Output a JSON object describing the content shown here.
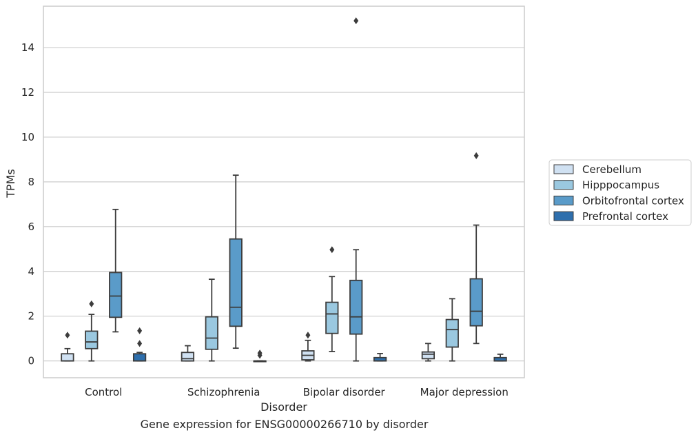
{
  "caption": "Gene expression for ENSG00000266710 by disorder",
  "chart_data": {
    "type": "box",
    "title": "",
    "xlabel": "Disorder",
    "ylabel": "TPMs",
    "ylim": [
      -0.75,
      15.85
    ],
    "yticks": [
      0,
      2,
      4,
      6,
      8,
      10,
      12,
      14
    ],
    "grid": "horizontal",
    "legend_position": "right",
    "categories": [
      "Control",
      "Schizophrenia",
      "Bipolar disorder",
      "Major depression"
    ],
    "series": [
      {
        "name": "Cerebellum",
        "color": "#d0e1f2",
        "boxes": [
          {
            "whisker_low": 0.0,
            "q1": 0.0,
            "median": 0.0,
            "q3": 0.32,
            "whisker_high": 0.55,
            "outliers": [
              1.15
            ]
          },
          {
            "whisker_low": 0.0,
            "q1": 0.0,
            "median": 0.1,
            "q3": 0.38,
            "whisker_high": 0.68,
            "outliers": []
          },
          {
            "whisker_low": 0.0,
            "q1": 0.05,
            "median": 0.25,
            "q3": 0.45,
            "whisker_high": 0.92,
            "outliers": [
              1.15
            ]
          },
          {
            "whisker_low": 0.0,
            "q1": 0.1,
            "median": 0.3,
            "q3": 0.4,
            "whisker_high": 0.78,
            "outliers": []
          }
        ]
      },
      {
        "name": "Hipppocampus",
        "color": "#9ac8e0",
        "boxes": [
          {
            "whisker_low": 0.0,
            "q1": 0.55,
            "median": 0.85,
            "q3": 1.33,
            "whisker_high": 2.08,
            "outliers": [
              2.55
            ]
          },
          {
            "whisker_low": 0.0,
            "q1": 0.52,
            "median": 1.02,
            "q3": 1.97,
            "whisker_high": 3.65,
            "outliers": []
          },
          {
            "whisker_low": 0.42,
            "q1": 1.23,
            "median": 2.1,
            "q3": 2.62,
            "whisker_high": 3.77,
            "outliers": [
              4.97
            ]
          },
          {
            "whisker_low": 0.0,
            "q1": 0.62,
            "median": 1.4,
            "q3": 1.85,
            "whisker_high": 2.78,
            "outliers": []
          }
        ]
      },
      {
        "name": "Orbitofrontal cortex",
        "color": "#5a9bc9",
        "boxes": [
          {
            "whisker_low": 1.3,
            "q1": 1.95,
            "median": 2.9,
            "q3": 3.95,
            "whisker_high": 6.77,
            "outliers": []
          },
          {
            "whisker_low": 0.57,
            "q1": 1.55,
            "median": 2.4,
            "q3": 5.45,
            "whisker_high": 8.3,
            "outliers": []
          },
          {
            "whisker_low": 0.0,
            "q1": 1.2,
            "median": 1.97,
            "q3": 3.6,
            "whisker_high": 4.97,
            "outliers": [
              15.2
            ]
          },
          {
            "whisker_low": 0.78,
            "q1": 1.57,
            "median": 2.22,
            "q3": 3.67,
            "whisker_high": 6.07,
            "outliers": [
              9.17
            ]
          }
        ]
      },
      {
        "name": "Prefrontal cortex",
        "color": "#2e6fad",
        "boxes": [
          {
            "whisker_low": 0.0,
            "q1": 0.0,
            "median": 0.0,
            "q3": 0.32,
            "whisker_high": 0.38,
            "outliers": [
              0.78,
              1.35
            ]
          },
          {
            "whisker_low": 0.0,
            "q1": 0.0,
            "median": 0.0,
            "q3": 0.0,
            "whisker_high": 0.0,
            "outliers": [
              0.25,
              0.35
            ]
          },
          {
            "whisker_low": 0.0,
            "q1": 0.0,
            "median": 0.0,
            "q3": 0.15,
            "whisker_high": 0.33,
            "outliers": []
          },
          {
            "whisker_low": 0.0,
            "q1": 0.0,
            "median": 0.0,
            "q3": 0.15,
            "whisker_high": 0.3,
            "outliers": []
          }
        ]
      }
    ]
  }
}
